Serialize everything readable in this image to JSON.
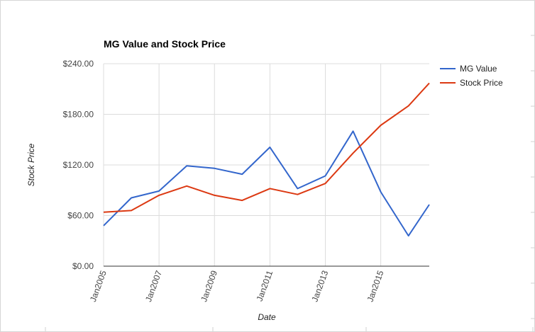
{
  "chart_data": {
    "type": "line",
    "title": "MG Value and Stock Price",
    "xlabel": "Date",
    "ylabel": "Stock Price",
    "x": [
      2005,
      2006,
      2007,
      2008,
      2009,
      2010,
      2011,
      2012,
      2013,
      2014,
      2015,
      2016,
      2016.75
    ],
    "xlim": [
      2005,
      2016.75
    ],
    "xticks": [
      2005,
      2007,
      2009,
      2011,
      2013,
      2015
    ],
    "xtick_labels": [
      "Jan2005",
      "Jan2007",
      "Jan2009",
      "Jan2011",
      "Jan2013",
      "Jan2015"
    ],
    "ylim": [
      0,
      240
    ],
    "yticks": [
      0,
      60,
      120,
      180,
      240
    ],
    "ytick_labels": [
      "$0.00",
      "$60.00",
      "$120.00",
      "$180.00",
      "$240.00"
    ],
    "grid": true,
    "legend_position": "right",
    "series": [
      {
        "name": "MG Value",
        "color": "#3366cc",
        "values": [
          48,
          81,
          89,
          119,
          116,
          109,
          141,
          92,
          107,
          160,
          88,
          36,
          73
        ]
      },
      {
        "name": "Stock Price",
        "color": "#dc3912",
        "values": [
          64,
          66,
          84,
          95,
          84,
          78,
          92,
          85,
          98,
          134,
          167,
          190,
          217
        ]
      }
    ]
  }
}
